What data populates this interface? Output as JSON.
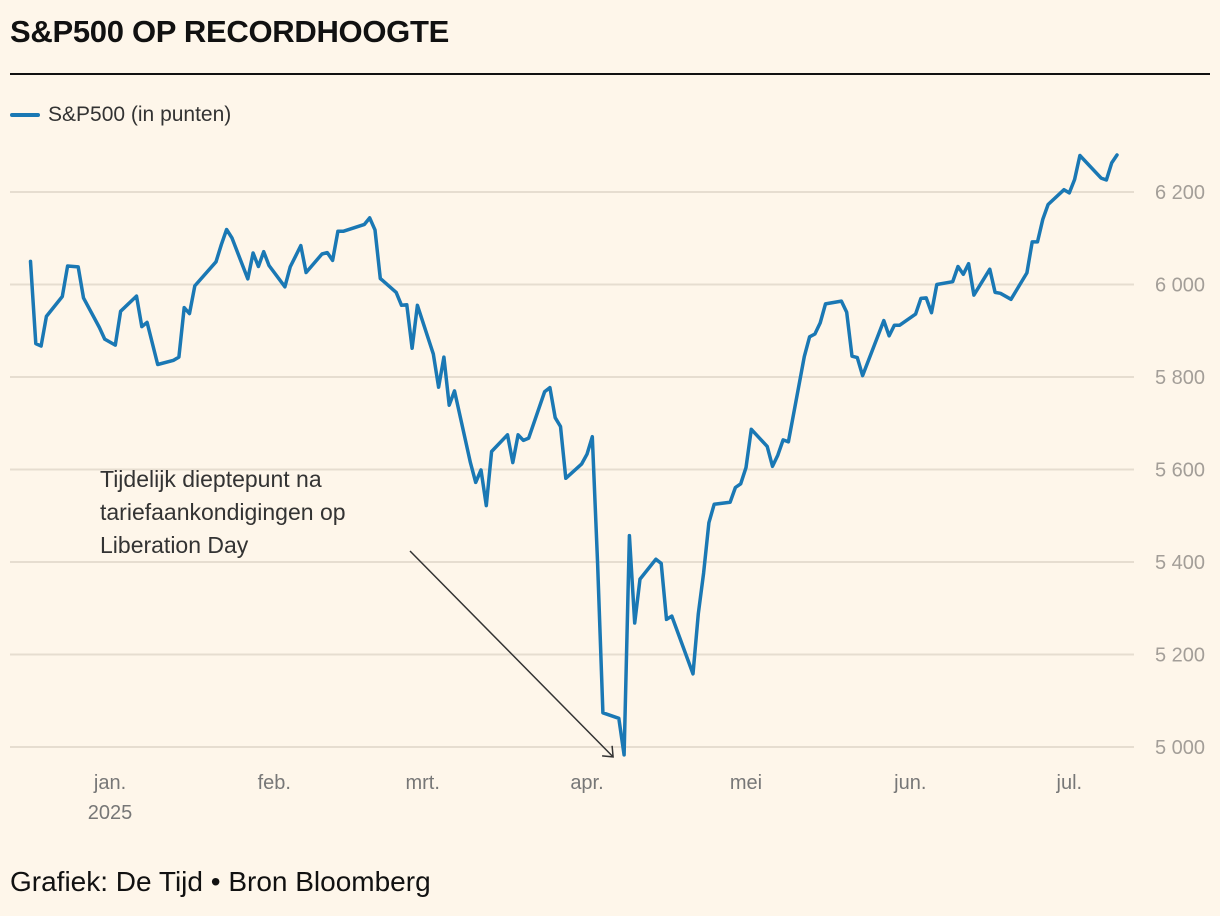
{
  "title": "S&P500 OP RECORDHOOGTE",
  "footer": "Grafiek: De Tijd • Bron Bloomberg",
  "chart_data": {
    "type": "line",
    "title": "S&P500 OP RECORDHOOGTE",
    "legend_position": "top-left",
    "grid": true,
    "ylim": [
      4980,
      6300
    ],
    "yticks": [
      5000,
      5200,
      5400,
      5600,
      5800,
      6000,
      6200
    ],
    "ytick_labels": [
      "5 000",
      "5 200",
      "5 400",
      "5 600",
      "5 800",
      "6 000",
      "6 200"
    ],
    "xticks": [
      {
        "date": "2025-01-01",
        "label": "jan.",
        "sublabel": "2025"
      },
      {
        "date": "2025-02-01",
        "label": "feb."
      },
      {
        "date": "2025-03-01",
        "label": "mrt."
      },
      {
        "date": "2025-04-01",
        "label": "apr."
      },
      {
        "date": "2025-05-01",
        "label": "mei"
      },
      {
        "date": "2025-06-01",
        "label": "jun."
      },
      {
        "date": "2025-07-01",
        "label": "jul."
      }
    ],
    "color": "#1a78b4",
    "annotation": {
      "lines": [
        "Tijdelijk dieptepunt na",
        "tariefaankondigingen op",
        "Liberation Day"
      ],
      "date": "2025-04-08",
      "value": 4983
    },
    "series": [
      {
        "name": "S&P500 (in punten)",
        "x": [
          "2024-12-17",
          "2024-12-18",
          "2024-12-19",
          "2024-12-20",
          "2024-12-23",
          "2024-12-24",
          "2024-12-26",
          "2024-12-27",
          "2024-12-30",
          "2024-12-31",
          "2025-01-02",
          "2025-01-03",
          "2025-01-06",
          "2025-01-07",
          "2025-01-08",
          "2025-01-10",
          "2025-01-13",
          "2025-01-14",
          "2025-01-15",
          "2025-01-16",
          "2025-01-17",
          "2025-01-21",
          "2025-01-22",
          "2025-01-23",
          "2025-01-24",
          "2025-01-27",
          "2025-01-28",
          "2025-01-29",
          "2025-01-30",
          "2025-01-31",
          "2025-02-03",
          "2025-02-04",
          "2025-02-05",
          "2025-02-06",
          "2025-02-07",
          "2025-02-10",
          "2025-02-11",
          "2025-02-12",
          "2025-02-13",
          "2025-02-14",
          "2025-02-18",
          "2025-02-19",
          "2025-02-20",
          "2025-02-21",
          "2025-02-24",
          "2025-02-25",
          "2025-02-26",
          "2025-02-27",
          "2025-02-28",
          "2025-03-03",
          "2025-03-04",
          "2025-03-05",
          "2025-03-06",
          "2025-03-07",
          "2025-03-10",
          "2025-03-11",
          "2025-03-12",
          "2025-03-13",
          "2025-03-14",
          "2025-03-17",
          "2025-03-18",
          "2025-03-19",
          "2025-03-20",
          "2025-03-21",
          "2025-03-24",
          "2025-03-25",
          "2025-03-26",
          "2025-03-27",
          "2025-03-28",
          "2025-03-31",
          "2025-04-01",
          "2025-04-02",
          "2025-04-03",
          "2025-04-04",
          "2025-04-07",
          "2025-04-08",
          "2025-04-09",
          "2025-04-10",
          "2025-04-11",
          "2025-04-14",
          "2025-04-15",
          "2025-04-16",
          "2025-04-17",
          "2025-04-21",
          "2025-04-22",
          "2025-04-23",
          "2025-04-24",
          "2025-04-25",
          "2025-04-28",
          "2025-04-29",
          "2025-04-30",
          "2025-05-01",
          "2025-05-02",
          "2025-05-05",
          "2025-05-06",
          "2025-05-07",
          "2025-05-08",
          "2025-05-09",
          "2025-05-12",
          "2025-05-13",
          "2025-05-14",
          "2025-05-15",
          "2025-05-16",
          "2025-05-19",
          "2025-05-20",
          "2025-05-21",
          "2025-05-22",
          "2025-05-23",
          "2025-05-27",
          "2025-05-28",
          "2025-05-29",
          "2025-05-30",
          "2025-06-02",
          "2025-06-03",
          "2025-06-04",
          "2025-06-05",
          "2025-06-06",
          "2025-06-09",
          "2025-06-10",
          "2025-06-11",
          "2025-06-12",
          "2025-06-13",
          "2025-06-16",
          "2025-06-17",
          "2025-06-18",
          "2025-06-20",
          "2025-06-23",
          "2025-06-24",
          "2025-06-25",
          "2025-06-26",
          "2025-06-27",
          "2025-06-30",
          "2025-07-01",
          "2025-07-02",
          "2025-07-03",
          "2025-07-07",
          "2025-07-08",
          "2025-07-09",
          "2025-07-10"
        ],
        "y": [
          6050,
          5872,
          5867,
          5931,
          5974,
          6040,
          6038,
          5971,
          5907,
          5882,
          5869,
          5942,
          5975,
          5909,
          5918,
          5827,
          5836,
          5843,
          5950,
          5937,
          5997,
          6049,
          6086,
          6119,
          6101,
          6012,
          6068,
          6039,
          6071,
          6041,
          5995,
          6038,
          6061,
          6084,
          6026,
          6066,
          6069,
          6052,
          6115,
          6115,
          6130,
          6144,
          6118,
          6013,
          5983,
          5955,
          5956,
          5862,
          5955,
          5850,
          5778,
          5843,
          5739,
          5770,
          5615,
          5572,
          5599,
          5522,
          5639,
          5675,
          5615,
          5675,
          5663,
          5668,
          5768,
          5777,
          5712,
          5693,
          5581,
          5612,
          5633,
          5671,
          5397,
          5074,
          5062,
          4983,
          5457,
          5268,
          5363,
          5406,
          5397,
          5276,
          5283,
          5158,
          5288,
          5376,
          5485,
          5525,
          5529,
          5561,
          5569,
          5604,
          5687,
          5650,
          5607,
          5631,
          5664,
          5660,
          5844,
          5887,
          5893,
          5917,
          5958,
          5964,
          5940,
          5845,
          5842,
          5803,
          5922,
          5889,
          5912,
          5912,
          5936,
          5970,
          5971,
          5939,
          6000,
          6006,
          6039,
          6022,
          6045,
          5977,
          6033,
          5983,
          5981,
          5968,
          6025,
          6092,
          6092,
          6141,
          6173,
          6205,
          6198,
          6227,
          6279,
          6230,
          6226,
          6263,
          6280
        ]
      }
    ]
  }
}
